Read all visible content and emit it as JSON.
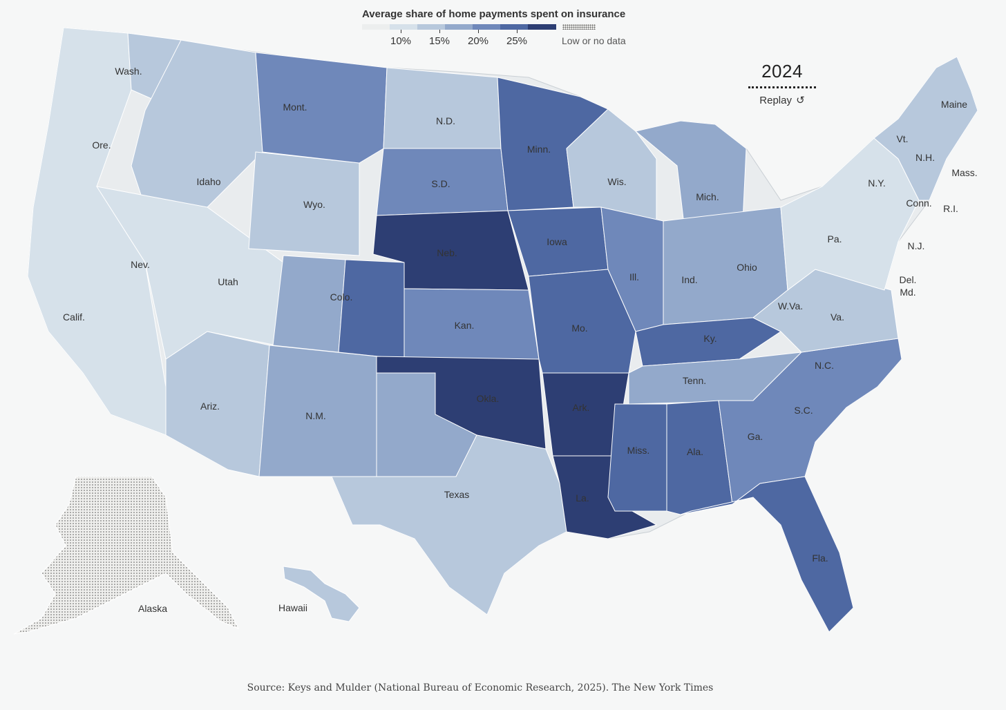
{
  "legend": {
    "title": "Average share of home payments spent on insurance",
    "ticks": [
      "10%",
      "15%",
      "20%",
      "25%"
    ],
    "no_data_label": "Low or no data",
    "colors": [
      "#eceeee",
      "#d6e1ea",
      "#b7c8dc",
      "#93a9cb",
      "#6f88ba",
      "#4e68a2",
      "#2d3e73"
    ]
  },
  "year_control": {
    "year": "2024",
    "replay_label": "Replay",
    "replay_icon": "↺"
  },
  "state_labels": {
    "wash": "Wash.",
    "ore": "Ore.",
    "calif": "Calif.",
    "nev": "Nev.",
    "idaho": "Idaho",
    "mont": "Mont.",
    "wyo": "Wyo.",
    "utah": "Utah",
    "colo": "Colo.",
    "ariz": "Ariz.",
    "nm": "N.M.",
    "nd": "N.D.",
    "sd": "S.D.",
    "neb": "Neb.",
    "kan": "Kan.",
    "okla": "Okla.",
    "texas": "Texas",
    "minn": "Minn.",
    "iowa": "Iowa",
    "mo": "Mo.",
    "ark": "Ark.",
    "la": "La.",
    "wis": "Wis.",
    "ill": "Ill.",
    "mich": "Mich.",
    "ind": "Ind.",
    "ohio": "Ohio",
    "ky": "Ky.",
    "tenn": "Tenn.",
    "miss": "Miss.",
    "ala": "Ala.",
    "ga": "Ga.",
    "fla": "Fla.",
    "sc": "S.C.",
    "nc": "N.C.",
    "va": "Va.",
    "wva": "W.Va.",
    "pa": "Pa.",
    "ny": "N.Y.",
    "vt": "Vt.",
    "nh": "N.H.",
    "maine": "Maine",
    "mass": "Mass.",
    "ri": "R.I.",
    "conn": "Conn.",
    "nj": "N.J.",
    "del": "Del.",
    "md": "Md.",
    "alaska": "Alaska",
    "hawaii": "Hawaii"
  },
  "regions": [
    {
      "id": "pacific-coast",
      "share_level": 0
    },
    {
      "id": "washington-east",
      "share_level": 1
    },
    {
      "id": "idaho-montana-west",
      "share_level": 1
    },
    {
      "id": "nevada-utah",
      "share_level": 0
    },
    {
      "id": "arizona",
      "share_level": 1
    },
    {
      "id": "wyoming",
      "share_level": 1
    },
    {
      "id": "montana-east",
      "share_level": 3
    },
    {
      "id": "colorado-west",
      "share_level": 2
    },
    {
      "id": "colorado-east",
      "share_level": 4
    },
    {
      "id": "new-mexico",
      "share_level": 2
    },
    {
      "id": "north-dakota",
      "share_level": 1
    },
    {
      "id": "south-dakota",
      "share_level": 3
    },
    {
      "id": "nebraska",
      "share_level": 5
    },
    {
      "id": "kansas",
      "share_level": 3
    },
    {
      "id": "oklahoma",
      "share_level": 5
    },
    {
      "id": "texas-panhandle",
      "share_level": 2
    },
    {
      "id": "texas",
      "share_level": 1
    },
    {
      "id": "minnesota",
      "share_level": 4
    },
    {
      "id": "iowa",
      "share_level": 4
    },
    {
      "id": "missouri",
      "share_level": 4
    },
    {
      "id": "arkansas",
      "share_level": 5
    },
    {
      "id": "louisiana",
      "share_level": 5
    },
    {
      "id": "wisconsin",
      "share_level": 1
    },
    {
      "id": "illinois",
      "share_level": 3
    },
    {
      "id": "michigan",
      "share_level": 2
    },
    {
      "id": "indiana-ohio",
      "share_level": 2
    },
    {
      "id": "kentucky",
      "share_level": 4
    },
    {
      "id": "tennessee",
      "share_level": 2
    },
    {
      "id": "mississippi",
      "share_level": 4
    },
    {
      "id": "alabama",
      "share_level": 4
    },
    {
      "id": "georgia-carolinas",
      "share_level": 3
    },
    {
      "id": "florida",
      "share_level": 4
    },
    {
      "id": "virginia-west-virginia",
      "share_level": 1
    },
    {
      "id": "northeast",
      "share_level": 0
    },
    {
      "id": "new-england-north",
      "share_level": 1
    },
    {
      "id": "hawaii",
      "share_level": 1
    },
    {
      "id": "alaska",
      "share_level": "no-data"
    }
  ],
  "source": {
    "prefix": "Source: Keys and Mulder (National Bureau of Economic Research, 2025).",
    "publisher": "The New York Times"
  }
}
